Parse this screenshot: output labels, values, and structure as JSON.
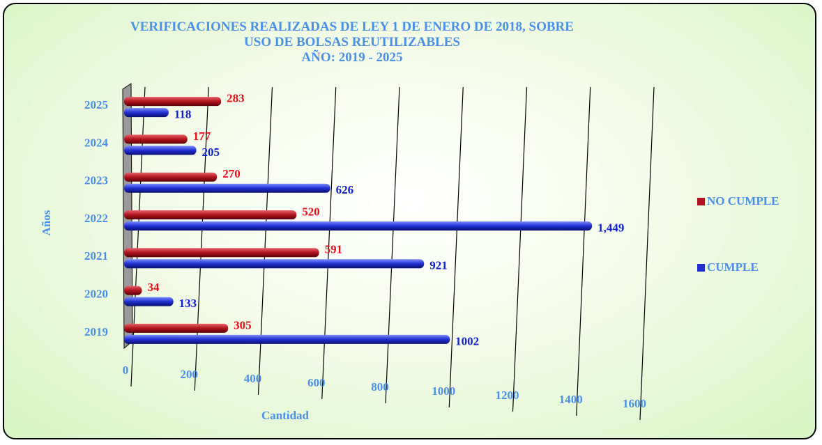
{
  "chart_data": {
    "type": "bar",
    "title": "VERIFICACIONES REALIZADAS DE LEY 1 DE ENERO DE 2018, SOBRE USO DE BOLSAS REUTILIZABLES",
    "subtitle": "AÑO: 2019 - 2025",
    "x_label": "Cantidad",
    "y_label": "Años",
    "categories": [
      "2019",
      "2020",
      "2021",
      "2022",
      "2023",
      "2024",
      "2025"
    ],
    "series": [
      {
        "name": "NO CUMPLE",
        "color": "#b0141c",
        "values": [
          305,
          34,
          591,
          520,
          270,
          177,
          283
        ]
      },
      {
        "name": "CUMPLE",
        "color": "#1f2fd0",
        "values": [
          1002,
          133,
          921,
          1449,
          626,
          205,
          118
        ],
        "value_labels": [
          "1002",
          "133",
          "921",
          "1,449",
          "626",
          "205",
          "118"
        ]
      }
    ],
    "xlim": [
      0,
      1600
    ],
    "xticks": [
      0,
      200,
      400,
      600,
      800,
      1000,
      1200,
      1400,
      1600
    ],
    "grid": true,
    "legend": "right"
  }
}
